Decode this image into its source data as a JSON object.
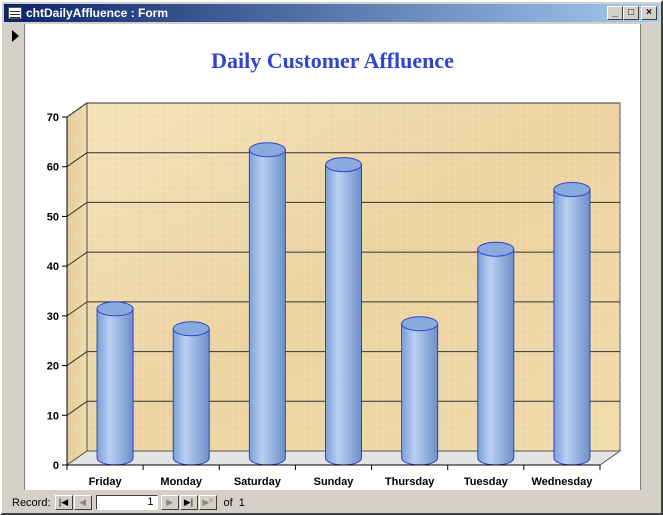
{
  "window": {
    "title": "chtDailyAffluence : Form",
    "buttons": {
      "minimize": "_",
      "maximize": "□",
      "close": "×"
    }
  },
  "chart_data": {
    "type": "bar",
    "title": "Daily Customer Affluence",
    "categories": [
      "Friday",
      "Monday",
      "Saturday",
      "Sunday",
      "Thursday",
      "Tuesday",
      "Wednesday"
    ],
    "values": [
      30,
      26,
      62,
      59,
      27,
      42,
      54
    ],
    "ylim": [
      0,
      70
    ],
    "yticks": [
      0,
      10,
      20,
      30,
      40,
      50,
      60,
      70
    ],
    "xlabel": "",
    "ylabel": "",
    "grid": true,
    "style": "3d-cylinder",
    "colors": {
      "bar": "#8fb3e6",
      "bar_edge": "#3344cc",
      "title": "#3344cc",
      "wall": "#f0ddb0"
    }
  },
  "navigation": {
    "record_label": "Record:",
    "first_icon": "first-record-icon",
    "prev_icon": "previous-record-icon",
    "current_record": "1",
    "next_icon": "next-record-icon",
    "last_icon": "last-record-icon",
    "new_icon": "new-record-icon",
    "of_label": "of",
    "total": "1"
  }
}
